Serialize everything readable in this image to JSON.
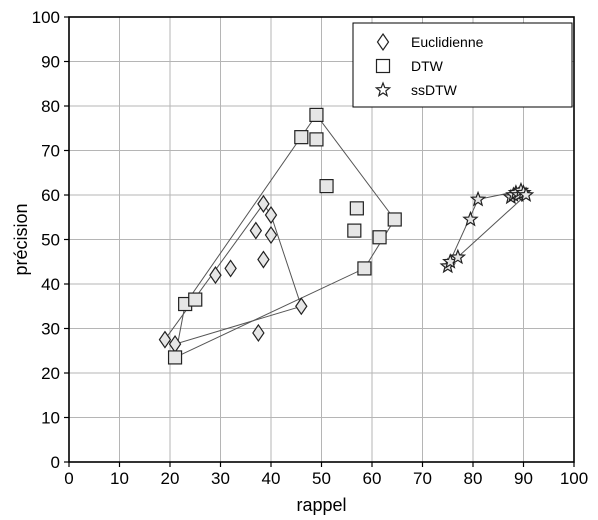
{
  "chart_data": {
    "type": "scatter",
    "title": "",
    "xlabel": "rappel",
    "ylabel": "précision",
    "xlim": [
      0,
      100
    ],
    "ylim": [
      0,
      100
    ],
    "xticks": [
      "0",
      "10",
      "20",
      "30",
      "40",
      "50",
      "60",
      "70",
      "80",
      "90",
      "100"
    ],
    "yticks": [
      "0",
      "10",
      "20",
      "30",
      "40",
      "50",
      "60",
      "70",
      "80",
      "90",
      "100"
    ],
    "grid": true,
    "legend_position": "top-right",
    "series": [
      {
        "name": "Euclidienne",
        "marker": "diamond",
        "points": [
          [
            19,
            27.5
          ],
          [
            21,
            26.5
          ],
          [
            29,
            42
          ],
          [
            32,
            43.5
          ],
          [
            37,
            52
          ],
          [
            38.5,
            58
          ],
          [
            40,
            55.5
          ],
          [
            40,
            51
          ],
          [
            38.5,
            45.5
          ],
          [
            37.5,
            29
          ],
          [
            46,
            35
          ]
        ],
        "hull": [
          [
            19,
            27.5
          ],
          [
            38.5,
            58
          ],
          [
            40,
            55.5
          ],
          [
            46,
            35
          ],
          [
            21,
            26.5
          ],
          [
            19,
            27.5
          ]
        ]
      },
      {
        "name": "DTW",
        "marker": "square",
        "points": [
          [
            21,
            23.5
          ],
          [
            23,
            35.5
          ],
          [
            25,
            36.5
          ],
          [
            46,
            73
          ],
          [
            49,
            78
          ],
          [
            49,
            72.5
          ],
          [
            51,
            62
          ],
          [
            57,
            57
          ],
          [
            56.5,
            52
          ],
          [
            64.5,
            54.5
          ],
          [
            61.5,
            50.5
          ],
          [
            58.5,
            43.5
          ]
        ],
        "hull": [
          [
            21,
            23.5
          ],
          [
            23,
            35.5
          ],
          [
            49,
            78
          ],
          [
            64.5,
            54.5
          ],
          [
            58.5,
            43.5
          ],
          [
            21,
            23.5
          ]
        ]
      },
      {
        "name": "ssDTW",
        "marker": "star",
        "points": [
          [
            75,
            44
          ],
          [
            75.5,
            45
          ],
          [
            77,
            46
          ],
          [
            79.5,
            54.5
          ],
          [
            81,
            59
          ],
          [
            87.5,
            59.5
          ],
          [
            88,
            60
          ],
          [
            88.5,
            60.5
          ],
          [
            89,
            60
          ],
          [
            89.5,
            61
          ],
          [
            90,
            60.5
          ],
          [
            90.5,
            60
          ]
        ],
        "hull": [
          [
            75,
            44
          ],
          [
            81,
            59
          ],
          [
            89.5,
            61
          ],
          [
            90.5,
            60
          ],
          [
            75,
            44
          ]
        ]
      }
    ]
  }
}
